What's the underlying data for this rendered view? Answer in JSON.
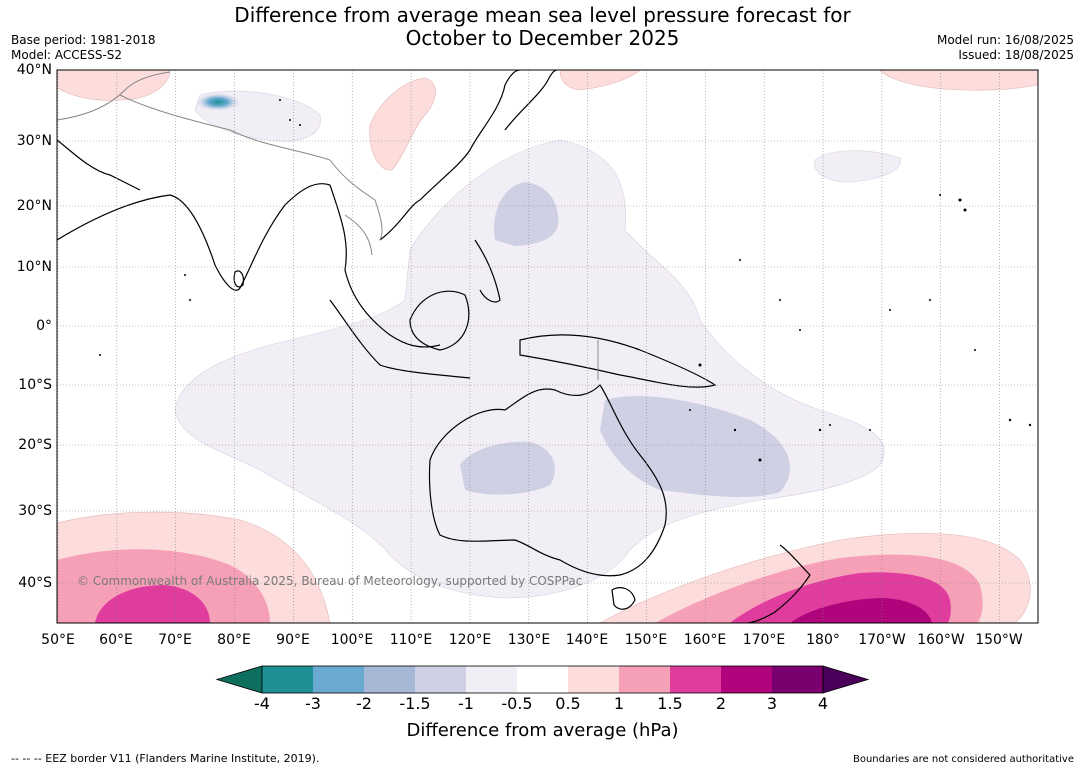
{
  "title_line1": "Difference from average mean sea level pressure forecast for",
  "title_line2": "October to December 2025",
  "base_period": "Base period: 1981-2018",
  "model": "Model: ACCESS-S2",
  "model_run": "Model run: 16/08/2025",
  "issued": "Issued: 18/08/2025",
  "copyright": "© Commonwealth of Australia 2025, Bureau of Meteorology, supported by COSPPac",
  "lat_labels": [
    "40°N",
    "30°N",
    "20°N",
    "10°N",
    "0°",
    "10°S",
    "20°S",
    "30°S",
    "40°S"
  ],
  "lon_labels": [
    "50°E",
    "60°E",
    "70°E",
    "80°E",
    "90°E",
    "100°E",
    "110°E",
    "120°E",
    "130°E",
    "140°E",
    "150°E",
    "160°E",
    "170°E",
    "180°",
    "170°W",
    "160°W",
    "150°W"
  ],
  "colorbar": {
    "title": "Difference from average (hPa)",
    "ticks": [
      "-4",
      "-3",
      "-2",
      "-1.5",
      "-1",
      "-0.5",
      "0.5",
      "1",
      "1.5",
      "2",
      "3",
      "4"
    ],
    "colors": [
      "#0f6f5f",
      "#1f9196",
      "#6aaad1",
      "#a7b8d6",
      "#cfd0e4",
      "#f2eef5",
      "#ffffff",
      "#fddcdc",
      "#f6a0b8",
      "#e03c9e",
      "#b0047c",
      "#7a0070",
      "#4a005a"
    ]
  },
  "footer_left": "--  --  -- EEZ border V11 (Flanders Marine Institute, 2019).",
  "footer_right": "Boundaries are not considered authoritative"
}
